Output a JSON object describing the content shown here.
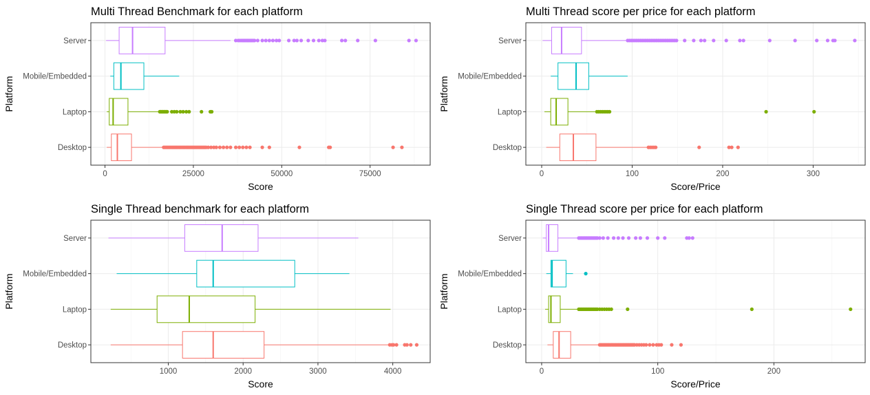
{
  "chart_data": [
    {
      "type": "boxplot",
      "title": "Multi Thread Benchmark for each platform",
      "xlabel": "Score",
      "ylabel": "Platform",
      "xlim": [
        -4000,
        92000
      ],
      "x_ticks": [
        0,
        25000,
        50000,
        75000
      ],
      "x_tick_labels": [
        "0",
        "25000",
        "50000",
        "75000"
      ],
      "categories": [
        "Server",
        "Mobile/Embedded",
        "Laptop",
        "Desktop"
      ],
      "colors": [
        "#c77cff",
        "#00bfc4",
        "#7cae00",
        "#f8766d"
      ],
      "boxes": [
        {
          "min": 300,
          "q1": 4000,
          "median": 7800,
          "q3": 17000,
          "max": 35500,
          "outliers": [
            37000,
            37700,
            38200,
            38700,
            39100,
            39500,
            39900,
            40300,
            40700,
            41100,
            41500,
            41900,
            42300,
            43200,
            44500,
            45500,
            46500,
            47500,
            48500,
            49300,
            52000,
            53500,
            54300,
            55500,
            57500,
            59000,
            60500,
            61500,
            62200,
            67000,
            68000,
            71500,
            76500,
            86000,
            88000
          ]
        },
        {
          "min": 1500,
          "q1": 2500,
          "median": 4500,
          "q3": 11000,
          "max": 21000,
          "outliers": []
        },
        {
          "min": 500,
          "q1": 1200,
          "median": 2300,
          "q3": 6500,
          "max": 15300,
          "outliers": [
            15500,
            15800,
            16100,
            16400,
            16700,
            17000,
            17300,
            17600,
            18900,
            19600,
            20300,
            21300,
            22100,
            23000,
            23800,
            27300,
            29800,
            30200
          ]
        },
        {
          "min": 500,
          "q1": 1800,
          "median": 3500,
          "q3": 7500,
          "max": 16400,
          "outliers": [
            16600,
            17000,
            17400,
            17800,
            18200,
            18600,
            19000,
            19400,
            19800,
            20200,
            20600,
            21000,
            21400,
            21800,
            22200,
            22600,
            23000,
            23400,
            23800,
            24200,
            24600,
            25000,
            25400,
            25800,
            26200,
            26600,
            27000,
            27400,
            27800,
            28200,
            28600,
            29200,
            30000,
            30800,
            31500,
            32500,
            33500,
            34500,
            35500,
            37000,
            38000,
            39000,
            40000,
            41000,
            44500,
            46500,
            55000,
            63300,
            63700,
            81500,
            84000
          ]
        }
      ]
    },
    {
      "type": "boxplot",
      "title": "Multi Thread score per price for each platform",
      "xlabel": "Score/Price",
      "ylabel": "Platform",
      "xlim": [
        -17.5,
        357.5
      ],
      "x_ticks": [
        0,
        100,
        200,
        300
      ],
      "x_tick_labels": [
        "0",
        "100",
        "200",
        "300"
      ],
      "categories": [
        "Server",
        "Mobile/Embedded",
        "Laptop",
        "Desktop"
      ],
      "colors": [
        "#c77cff",
        "#00bfc4",
        "#7cae00",
        "#f8766d"
      ],
      "boxes": [
        {
          "min": 1,
          "q1": 11,
          "median": 22,
          "q3": 44,
          "max": 93,
          "outliers": [
            95,
            97,
            99,
            101,
            103,
            105,
            107,
            109,
            111,
            113,
            115,
            117,
            119,
            121,
            123,
            125,
            127,
            129,
            131,
            133,
            135,
            137,
            139,
            141,
            143,
            145,
            147,
            149,
            158,
            168,
            176,
            180,
            190,
            204,
            219,
            223,
            252,
            280,
            304,
            316,
            322,
            324,
            346
          ]
        },
        {
          "min": 10,
          "q1": 18,
          "median": 38,
          "q3": 52,
          "max": 95,
          "outliers": []
        },
        {
          "min": 3,
          "q1": 10,
          "median": 16,
          "q3": 29,
          "max": 59,
          "outliers": [
            61,
            63,
            65,
            67,
            69,
            71,
            73,
            75,
            248,
            301
          ]
        },
        {
          "min": 5,
          "q1": 20,
          "median": 35,
          "q3": 60,
          "max": 117,
          "outliers": [
            118,
            120,
            122,
            124,
            126,
            174,
            207,
            210,
            217
          ]
        }
      ]
    },
    {
      "type": "boxplot",
      "title": "Single Thread benchmark for each platform",
      "xlabel": "Score",
      "ylabel": "Platform",
      "xlim": [
        -35,
        4500
      ],
      "x_ticks": [
        1000,
        2000,
        3000,
        4000
      ],
      "x_tick_labels": [
        "1000",
        "2000",
        "3000",
        "4000"
      ],
      "categories": [
        "Server",
        "Mobile/Embedded",
        "Laptop",
        "Desktop"
      ],
      "colors": [
        "#c77cff",
        "#00bfc4",
        "#7cae00",
        "#f8766d"
      ],
      "boxes": [
        {
          "min": 200,
          "q1": 1220,
          "median": 1720,
          "q3": 2200,
          "max": 3540,
          "outliers": []
        },
        {
          "min": 310,
          "q1": 1380,
          "median": 1600,
          "q3": 2690,
          "max": 3420,
          "outliers": []
        },
        {
          "min": 230,
          "q1": 850,
          "median": 1280,
          "q3": 2160,
          "max": 3970,
          "outliers": []
        },
        {
          "min": 230,
          "q1": 1190,
          "median": 1600,
          "q3": 2280,
          "max": 3940,
          "outliers": [
            3960,
            3990,
            4010,
            4050,
            4160,
            4190,
            4240,
            4320
          ]
        }
      ]
    },
    {
      "type": "boxplot",
      "title": "Single Thread score per price for each platform",
      "xlabel": "Score/Price",
      "ylabel": "Platform",
      "xlim": [
        -13.6,
        278.6
      ],
      "x_ticks": [
        0,
        100,
        200
      ],
      "x_tick_labels": [
        "0",
        "100",
        "200"
      ],
      "categories": [
        "Server",
        "Mobile/Embedded",
        "Laptop",
        "Desktop"
      ],
      "colors": [
        "#c77cff",
        "#00bfc4",
        "#7cae00",
        "#f8766d"
      ],
      "boxes": [
        {
          "min": 1,
          "q1": 4,
          "median": 6,
          "q3": 14,
          "max": 31,
          "outliers": [
            32,
            33,
            34,
            35,
            36,
            37,
            38,
            39,
            40,
            41,
            42,
            43,
            44,
            45,
            46,
            47,
            48,
            50,
            53,
            57,
            62,
            66,
            70,
            75,
            81,
            85,
            91,
            100,
            106,
            125,
            127,
            130
          ]
        },
        {
          "min": 4,
          "q1": 8,
          "median": 9,
          "q3": 21,
          "max": 27,
          "outliers": [
            38
          ]
        },
        {
          "min": 3,
          "q1": 6,
          "median": 8,
          "q3": 16,
          "max": 31,
          "outliers": [
            32,
            33,
            34,
            35,
            36,
            37,
            38,
            39,
            40,
            41,
            42,
            43,
            44,
            45,
            46,
            47,
            48,
            50,
            52,
            54,
            56,
            58,
            60,
            74,
            181,
            266
          ]
        },
        {
          "min": 5,
          "q1": 10,
          "median": 15,
          "q3": 25,
          "max": 49,
          "outliers": [
            50,
            51,
            52,
            53,
            54,
            55,
            56,
            57,
            58,
            59,
            60,
            61,
            62,
            63,
            64,
            65,
            66,
            67,
            68,
            69,
            70,
            71,
            72,
            73,
            74,
            75,
            76,
            77,
            78,
            79,
            80,
            82,
            84,
            86,
            88,
            90,
            93,
            96,
            99,
            101,
            103,
            112,
            120
          ]
        }
      ]
    }
  ]
}
